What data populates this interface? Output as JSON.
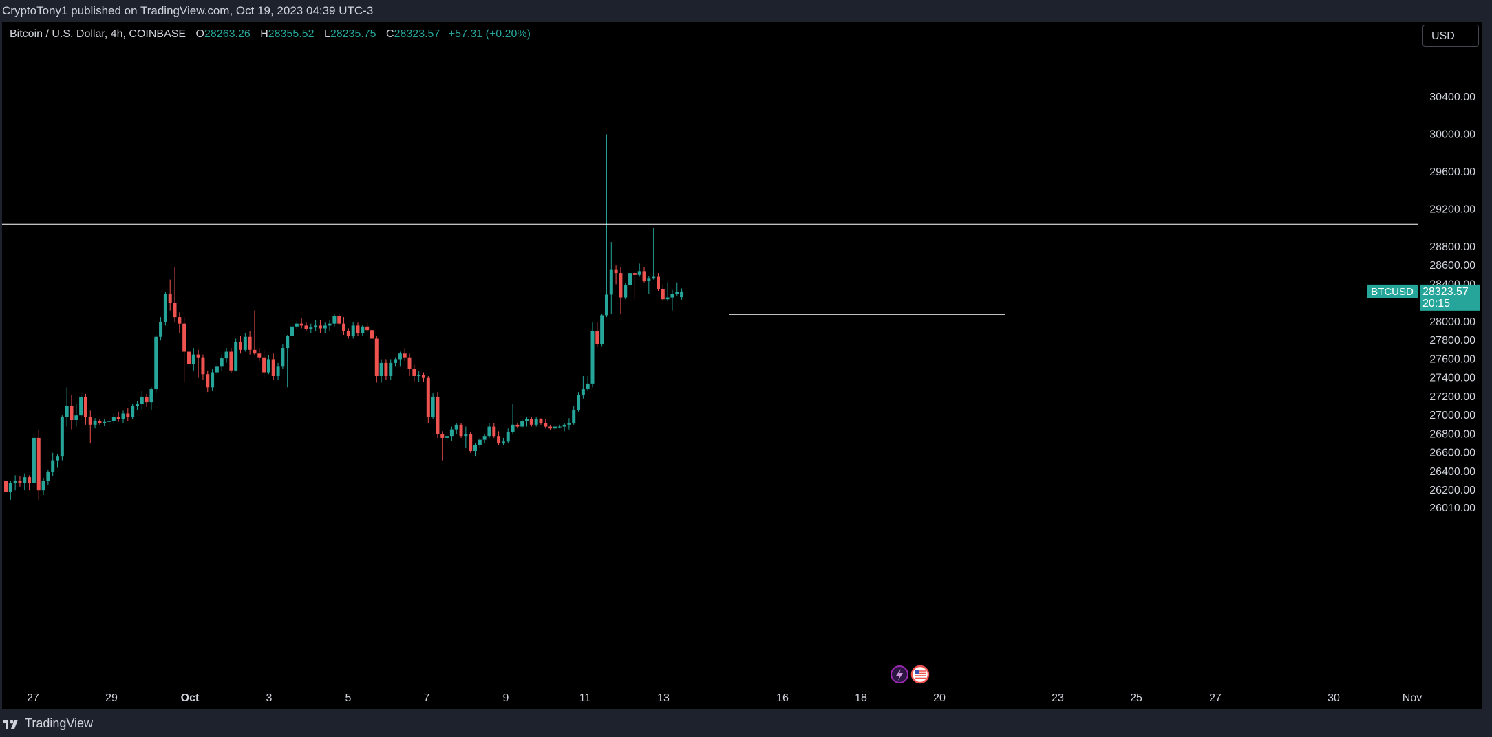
{
  "header": {
    "publisher_line": "CryptoTony1 published on TradingView.com, Oct 19, 2023 04:39 UTC-3"
  },
  "legend": {
    "symbol": "Bitcoin / U.S. Dollar, 4h, COINBASE",
    "open_label": "O",
    "open": "28263.26",
    "high_label": "H",
    "high": "28355.52",
    "low_label": "L",
    "low": "28235.75",
    "close_label": "C",
    "close": "28323.57",
    "change": "+57.31 (+0.20%)"
  },
  "currency_button": "USD",
  "price_tag": {
    "symbol": "BTCUSD",
    "price": "28323.57",
    "countdown": "20:15",
    "value": 28323.57
  },
  "y_ticks": [
    "30400.00",
    "30000.00",
    "29600.00",
    "29200.00",
    "28800.00",
    "28600.00",
    "28400.00",
    "28000.00",
    "27800.00",
    "27600.00",
    "27400.00",
    "27200.00",
    "27000.00",
    "26800.00",
    "26600.00",
    "26400.00",
    "26200.00",
    "26010.00"
  ],
  "x_ticks": [
    "27",
    "29",
    "Oct",
    "3",
    "5",
    "7",
    "9",
    "11",
    "13",
    "16",
    "18",
    "20",
    "23",
    "25",
    "27",
    "30",
    "Nov"
  ],
  "horizontal_lines": [
    {
      "price": 29040
    },
    {
      "price": 28080
    }
  ],
  "colors": {
    "up": "#26a69a",
    "down": "#ef5350",
    "background": "#000000",
    "frame": "#1e222d",
    "text": "#d1d4dc",
    "line": "#ffffff"
  },
  "chart_data": {
    "type": "candlestick",
    "title": "Bitcoin / U.S. Dollar, 4h, COINBASE",
    "ylim": [
      26010,
      30400
    ],
    "candles": [
      [
        26300,
        26400,
        26080,
        26180
      ],
      [
        26180,
        26300,
        26100,
        26280
      ],
      [
        26280,
        26360,
        26200,
        26300
      ],
      [
        26300,
        26350,
        26240,
        26280
      ],
      [
        26280,
        26380,
        26200,
        26340
      ],
      [
        26340,
        26360,
        26200,
        26280
      ],
      [
        26280,
        26800,
        26220,
        26760
      ],
      [
        26760,
        26850,
        26100,
        26200
      ],
      [
        26200,
        26330,
        26150,
        26300
      ],
      [
        26300,
        26420,
        26260,
        26400
      ],
      [
        26400,
        26600,
        26350,
        26520
      ],
      [
        26520,
        26590,
        26440,
        26560
      ],
      [
        26560,
        27000,
        26520,
        26980
      ],
      [
        26980,
        27300,
        26880,
        27100
      ],
      [
        27100,
        27220,
        26850,
        26950
      ],
      [
        26950,
        27120,
        26880,
        27000
      ],
      [
        27000,
        27250,
        26950,
        27200
      ],
      [
        27200,
        27230,
        26900,
        26980
      ],
      [
        26980,
        27050,
        26700,
        26900
      ],
      [
        26900,
        26970,
        26860,
        26940
      ],
      [
        26940,
        26960,
        26900,
        26920
      ],
      [
        26920,
        26960,
        26890,
        26930
      ],
      [
        26930,
        26960,
        26880,
        26940
      ],
      [
        26940,
        27020,
        26910,
        26980
      ],
      [
        26980,
        27040,
        26930,
        26960
      ],
      [
        26960,
        27050,
        26920,
        27020
      ],
      [
        27020,
        27080,
        26940,
        26980
      ],
      [
        26980,
        27120,
        26960,
        27100
      ],
      [
        27100,
        27150,
        27060,
        27120
      ],
      [
        27120,
        27260,
        27060,
        27200
      ],
      [
        27200,
        27230,
        27090,
        27140
      ],
      [
        27140,
        27300,
        27060,
        27280
      ],
      [
        27280,
        27860,
        27240,
        27840
      ],
      [
        27840,
        28050,
        27800,
        28000
      ],
      [
        28000,
        28320,
        27960,
        28300
      ],
      [
        28300,
        28450,
        28120,
        28200
      ],
      [
        28200,
        28580,
        28000,
        28050
      ],
      [
        28050,
        28100,
        27880,
        27980
      ],
      [
        27980,
        28050,
        27350,
        27680
      ],
      [
        27680,
        27800,
        27500,
        27550
      ],
      [
        27550,
        27720,
        27480,
        27650
      ],
      [
        27650,
        27700,
        27400,
        27620
      ],
      [
        27620,
        27650,
        27380,
        27440
      ],
      [
        27440,
        27480,
        27250,
        27300
      ],
      [
        27300,
        27500,
        27260,
        27460
      ],
      [
        27460,
        27560,
        27430,
        27520
      ],
      [
        27520,
        27650,
        27470,
        27610
      ],
      [
        27610,
        27720,
        27560,
        27680
      ],
      [
        27680,
        27720,
        27450,
        27480
      ],
      [
        27480,
        27820,
        27470,
        27780
      ],
      [
        27780,
        27850,
        27660,
        27700
      ],
      [
        27700,
        27880,
        27680,
        27840
      ],
      [
        27840,
        27900,
        27650,
        27700
      ],
      [
        27700,
        28120,
        27640,
        27660
      ],
      [
        27660,
        27720,
        27580,
        27620
      ],
      [
        27620,
        27700,
        27400,
        27460
      ],
      [
        27460,
        27640,
        27440,
        27600
      ],
      [
        27600,
        27660,
        27380,
        27420
      ],
      [
        27420,
        27560,
        27380,
        27520
      ],
      [
        27520,
        27760,
        27500,
        27720
      ],
      [
        27720,
        27860,
        27300,
        27850
      ],
      [
        27850,
        28120,
        27820,
        27950
      ],
      [
        27950,
        28010,
        27920,
        27980
      ],
      [
        27980,
        28040,
        27930,
        27960
      ],
      [
        27960,
        27990,
        27900,
        27920
      ],
      [
        27920,
        27980,
        27880,
        27940
      ],
      [
        27940,
        28020,
        27900,
        27960
      ],
      [
        27960,
        28020,
        27880,
        27930
      ],
      [
        27930,
        27990,
        27880,
        27960
      ],
      [
        27960,
        28020,
        27900,
        27980
      ],
      [
        27980,
        28080,
        27950,
        28060
      ],
      [
        28060,
        28080,
        27970,
        27980
      ],
      [
        27980,
        28050,
        27860,
        27900
      ],
      [
        27900,
        27930,
        27820,
        27850
      ],
      [
        27850,
        28000,
        27820,
        27960
      ],
      [
        27960,
        27990,
        27850,
        27880
      ],
      [
        27880,
        27970,
        27850,
        27950
      ],
      [
        27950,
        28000,
        27890,
        27910
      ],
      [
        27910,
        27930,
        27780,
        27820
      ],
      [
        27820,
        27850,
        27350,
        27420
      ],
      [
        27420,
        27600,
        27350,
        27560
      ],
      [
        27560,
        27600,
        27380,
        27420
      ],
      [
        27420,
        27600,
        27380,
        27560
      ],
      [
        27560,
        27620,
        27520,
        27600
      ],
      [
        27600,
        27680,
        27520,
        27660
      ],
      [
        27660,
        27720,
        27580,
        27620
      ],
      [
        27620,
        27660,
        27420,
        27500
      ],
      [
        27500,
        27540,
        27360,
        27420
      ],
      [
        27420,
        27470,
        27360,
        27430
      ],
      [
        27430,
        27460,
        27360,
        27400
      ],
      [
        27400,
        27420,
        26920,
        26980
      ],
      [
        26980,
        27240,
        26960,
        27200
      ],
      [
        27200,
        27250,
        26760,
        26800
      ],
      [
        26800,
        26830,
        26520,
        26760
      ],
      [
        26760,
        26790,
        26720,
        26780
      ],
      [
        26780,
        26880,
        26730,
        26850
      ],
      [
        26850,
        26920,
        26800,
        26900
      ],
      [
        26900,
        26920,
        26760,
        26780
      ],
      [
        26780,
        26880,
        26650,
        26800
      ],
      [
        26800,
        26820,
        26600,
        26620
      ],
      [
        26620,
        26700,
        26560,
        26680
      ],
      [
        26680,
        26760,
        26650,
        26740
      ],
      [
        26740,
        26800,
        26700,
        26780
      ],
      [
        26780,
        26920,
        26760,
        26880
      ],
      [
        26880,
        26920,
        26760,
        26780
      ],
      [
        26780,
        26830,
        26680,
        26700
      ],
      [
        26700,
        26760,
        26680,
        26720
      ],
      [
        26720,
        26860,
        26700,
        26820
      ],
      [
        26820,
        27120,
        26800,
        26900
      ],
      [
        26900,
        26920,
        26860,
        26880
      ],
      [
        26880,
        26960,
        26860,
        26940
      ],
      [
        26940,
        26980,
        26880,
        26960
      ],
      [
        26960,
        26980,
        26880,
        26900
      ],
      [
        26900,
        26980,
        26880,
        26960
      ],
      [
        26960,
        26970,
        26900,
        26920
      ],
      [
        26920,
        26960,
        26860,
        26880
      ],
      [
        26880,
        26900,
        26840,
        26860
      ],
      [
        26860,
        26900,
        26840,
        26880
      ],
      [
        26880,
        26900,
        26860,
        26880
      ],
      [
        26880,
        26920,
        26830,
        26900
      ],
      [
        26900,
        26970,
        26850,
        26920
      ],
      [
        26920,
        27100,
        26900,
        27060
      ],
      [
        27060,
        27250,
        27040,
        27220
      ],
      [
        27220,
        27420,
        27180,
        27280
      ],
      [
        27280,
        27420,
        27260,
        27340
      ],
      [
        27340,
        28000,
        27300,
        27900
      ],
      [
        27900,
        27990,
        27730,
        27760
      ],
      [
        27760,
        28080,
        27740,
        28070
      ],
      [
        28070,
        30000,
        28050,
        28290
      ],
      [
        28290,
        28850,
        28080,
        28560
      ],
      [
        28560,
        28600,
        28400,
        28520
      ],
      [
        28520,
        28580,
        28080,
        28260
      ],
      [
        28260,
        28410,
        28240,
        28390
      ],
      [
        28390,
        28560,
        28300,
        28520
      ],
      [
        28520,
        28530,
        28240,
        28500
      ],
      [
        28500,
        28620,
        28480,
        28540
      ],
      [
        28540,
        28580,
        28420,
        28440
      ],
      [
        28440,
        28490,
        28300,
        28460
      ],
      [
        28460,
        29000,
        28450,
        28480
      ],
      [
        28480,
        28520,
        28330,
        28350
      ],
      [
        28350,
        28400,
        28220,
        28240
      ],
      [
        28240,
        28420,
        28220,
        28260
      ],
      [
        28260,
        28340,
        28120,
        28300
      ],
      [
        28300,
        28420,
        28280,
        28320
      ],
      [
        28263.26,
        28355.52,
        28235.75,
        28323.57
      ]
    ]
  }
}
